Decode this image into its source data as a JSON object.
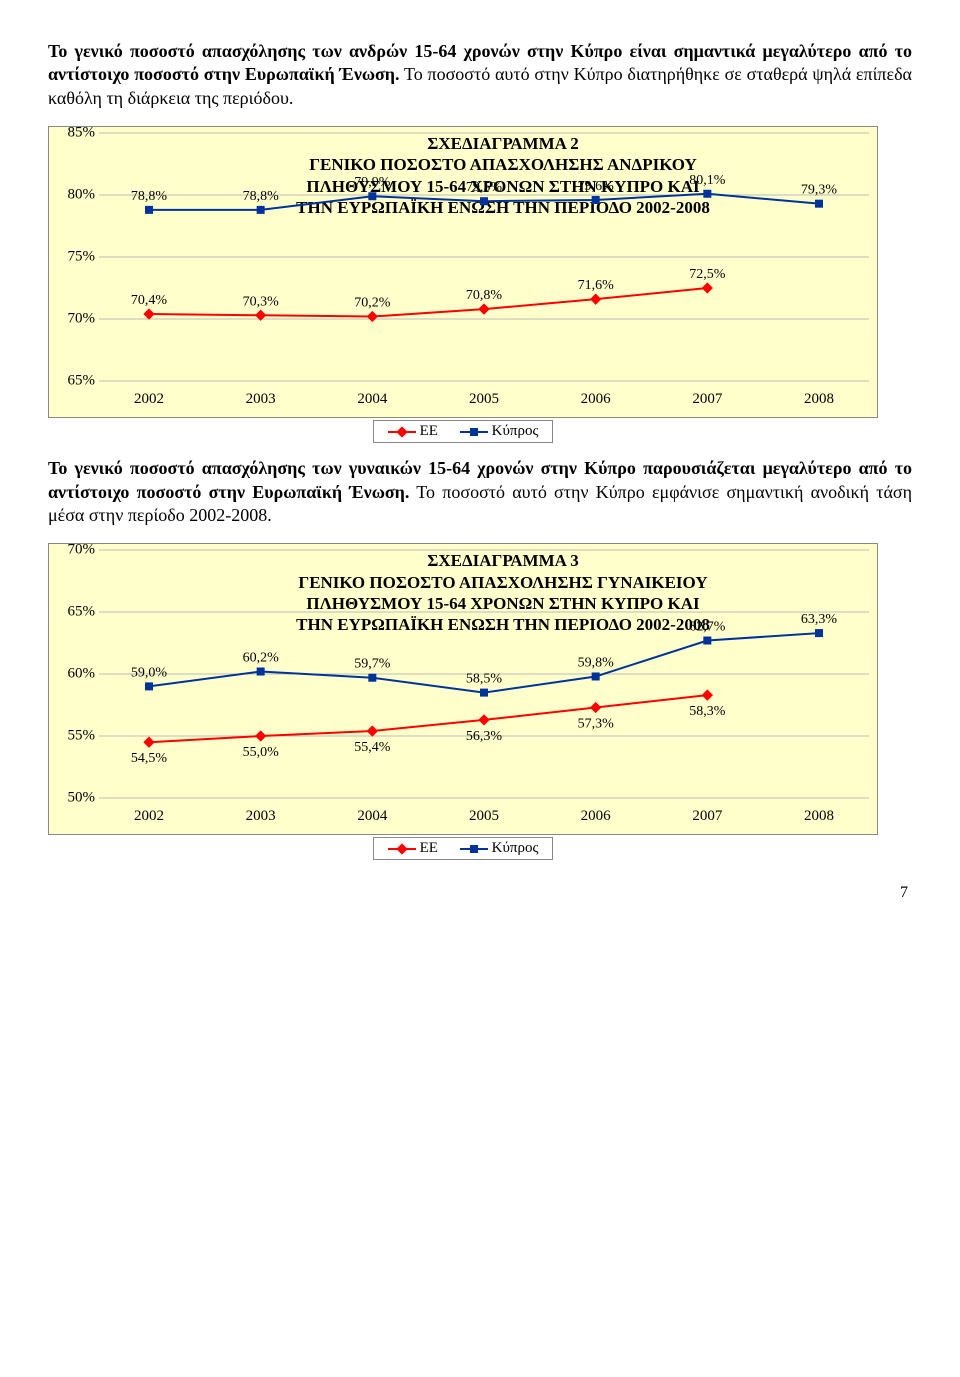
{
  "para1": {
    "lead": "Το γενικό ποσοστό απασχόλησης των ανδρών 15-64 χρονών στην Κύπρο είναι σημαντικά μεγαλύτερο από το αντίστοιχο ποσοστό στην Ευρωπαϊκή Ένωση.",
    "rest": " Το ποσοστό αυτό στην Κύπρο διατηρήθηκε σε σταθερά ψηλά επίπεδα καθόλη τη διάρκεια της περιόδου."
  },
  "para2": {
    "lead": "Το γενικό ποσοστό απασχόλησης των γυναικών 15-64 χρονών στην Κύπρο παρουσιάζεται μεγαλύτερο από το αντίστοιχο ποσοστό στην Ευρωπαϊκή Ένωση.",
    "rest": " Το ποσοστό αυτό στην Κύπρο εμφάνισε σημαντική ανοδική τάση μέσα στην περίοδο 2002-2008."
  },
  "chart2": {
    "title1": "ΣΧΕΔΙΑΓΡΑΜΜΑ 2",
    "title2": "ΓΕΝΙΚΟ ΠΟΣΟΣΤΟ ΑΠΑΣΧΟΛΗΣΗΣ ΑΝΔΡΙΚΟΥ",
    "title3": "ΠΛΗΘΥΣΜΟΥ 15-64 ΧΡΟΝΩΝ ΣΤΗΝ ΚΥΠΡΟ ΚΑΙ",
    "title4": "ΤΗΝ ΕΥΡΩΠΑΪΚΗ ΕΝΩΣΗ ΤΗΝ ΠΕΡΙΟΔΟ 2002-2008",
    "years": [
      "2002",
      "2003",
      "2004",
      "2005",
      "2006",
      "2007",
      "2008"
    ],
    "y_ticks": [
      "65%",
      "70%",
      "75%",
      "80%",
      "85%"
    ],
    "y_min": 65,
    "y_max": 85,
    "series_cyprus": {
      "color": "#003399",
      "values": [
        78.8,
        78.8,
        79.9,
        79.5,
        79.6,
        80.1,
        79.3
      ],
      "labels": [
        "78,8%",
        "78,8%",
        "79,9%",
        "79,5%",
        "79,6%",
        "80,1%",
        "79,3%"
      ]
    },
    "series_eu": {
      "color": "#ff0000",
      "values": [
        70.4,
        70.3,
        70.2,
        70.8,
        71.6,
        72.5,
        null
      ],
      "labels": [
        "70,4%",
        "70,3%",
        "70,2%",
        "70,8%",
        "71,6%",
        "72,5%",
        ""
      ]
    }
  },
  "chart3": {
    "title1": "ΣΧΕΔΙΑΓΡΑΜΜΑ 3",
    "title2": "ΓΕΝΙΚΟ ΠΟΣΟΣΤΟ ΑΠΑΣΧΟΛΗΣΗΣ ΓΥΝΑΙΚΕΙΟΥ",
    "title3": "ΠΛΗΘΥΣΜΟΥ 15-64 ΧΡΟΝΩΝ ΣΤΗΝ ΚΥΠΡΟ ΚΑΙ",
    "title4": "ΤΗΝ ΕΥΡΩΠΑΪΚΗ ΕΝΩΣΗ ΤΗΝ ΠΕΡΙΟΔΟ 2002-2008",
    "years": [
      "2002",
      "2003",
      "2004",
      "2005",
      "2006",
      "2007",
      "2008"
    ],
    "y_ticks": [
      "50%",
      "55%",
      "60%",
      "65%",
      "70%"
    ],
    "y_min": 50,
    "y_max": 70,
    "series_cyprus": {
      "color": "#003399",
      "values": [
        59.0,
        60.2,
        59.7,
        58.5,
        59.8,
        62.7,
        63.3
      ],
      "labels": [
        "59,0%",
        "60,2%",
        "59,7%",
        "58,5%",
        "59,8%",
        "62,7%",
        "63,3%"
      ]
    },
    "series_eu": {
      "color": "#ff0000",
      "values": [
        54.5,
        55.0,
        55.4,
        56.3,
        57.3,
        58.3,
        null
      ],
      "labels": [
        "54,5%",
        "55,0%",
        "55,4%",
        "56,3%",
        "57,3%",
        "58,3%",
        ""
      ]
    }
  },
  "legend": {
    "eu": "ΕΕ",
    "cyprus": "Κύπρος",
    "eu_color": "#ff0000",
    "cy_color": "#003399"
  },
  "page_number": "7",
  "chart_bg": "#ffffcc"
}
